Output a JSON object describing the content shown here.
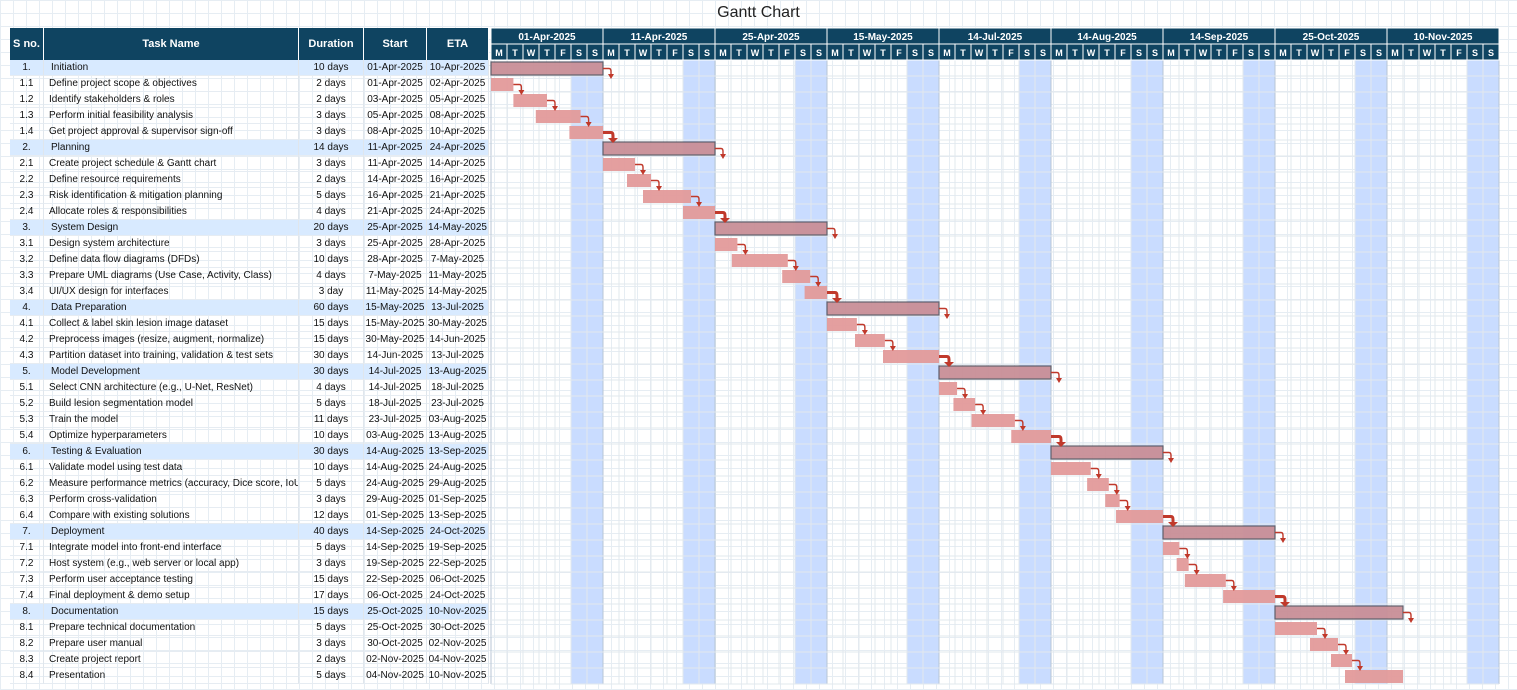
{
  "title": "Gantt Chart",
  "columns": [
    "S no.",
    "Task Name",
    "Duration",
    "Start",
    "ETA"
  ],
  "day_letters": [
    "M",
    "T",
    "W",
    "T",
    "F",
    "S",
    "S"
  ],
  "colors": {
    "header": "#0f4461",
    "phase_row": "#d8eaff",
    "weekend": "#c9dcff",
    "bar": "#e39a9a",
    "phase_bar": "#c98f97",
    "arrow": "#c0392b"
  },
  "chart_data": {
    "type": "table",
    "week_blocks": [
      "01-Apr-2025",
      "11-Apr-2025",
      "25-Apr-2025",
      "15-May-2025",
      "14-Jul-2025",
      "14-Aug-2025",
      "14-Sep-2025",
      "25-Oct-2025",
      "10-Nov-2025"
    ],
    "tasks": [
      {
        "id": "1.",
        "name": "Initiation",
        "duration": "10 days",
        "start": "01-Apr-2025",
        "eta": "10-Apr-2025",
        "phase": true
      },
      {
        "id": "1.1",
        "name": "Define project scope & objectives",
        "duration": "2 days",
        "start": "01-Apr-2025",
        "eta": "02-Apr-2025"
      },
      {
        "id": "1.2",
        "name": "Identify stakeholders & roles",
        "duration": "2 days",
        "start": "03-Apr-2025",
        "eta": "05-Apr-2025"
      },
      {
        "id": "1.3",
        "name": "Perform initial feasibility analysis",
        "duration": "3 days",
        "start": "05-Apr-2025",
        "eta": "08-Apr-2025"
      },
      {
        "id": "1.4",
        "name": "Get project approval & supervisor sign-off",
        "duration": "3 days",
        "start": "08-Apr-2025",
        "eta": "10-Apr-2025"
      },
      {
        "id": "2.",
        "name": "Planning",
        "duration": "14 days",
        "start": "11-Apr-2025",
        "eta": "24-Apr-2025",
        "phase": true
      },
      {
        "id": "2.1",
        "name": "Create project schedule & Gantt chart",
        "duration": "3 days",
        "start": "11-Apr-2025",
        "eta": "14-Apr-2025"
      },
      {
        "id": "2.2",
        "name": "Define resource requirements",
        "duration": "2 days",
        "start": "14-Apr-2025",
        "eta": "16-Apr-2025"
      },
      {
        "id": "2.3",
        "name": "Risk identification & mitigation planning",
        "duration": "5 days",
        "start": "16-Apr-2025",
        "eta": "21-Apr-2025"
      },
      {
        "id": "2.4",
        "name": "Allocate roles & responsibilities",
        "duration": "4 days",
        "start": "21-Apr-2025",
        "eta": "24-Apr-2025"
      },
      {
        "id": "3.",
        "name": "System Design",
        "duration": "20 days",
        "start": "25-Apr-2025",
        "eta": "14-May-2025",
        "phase": true
      },
      {
        "id": "3.1",
        "name": "Design system architecture",
        "duration": "3 days",
        "start": "25-Apr-2025",
        "eta": "28-Apr-2025"
      },
      {
        "id": "3.2",
        "name": "Define data flow diagrams (DFDs)",
        "duration": "10 days",
        "start": "28-Apr-2025",
        "eta": "7-May-2025"
      },
      {
        "id": "3.3",
        "name": "Prepare UML diagrams (Use Case, Activity, Class)",
        "duration": "4 days",
        "start": "7-May-2025",
        "eta": "11-May-2025"
      },
      {
        "id": "3.4",
        "name": "UI/UX design for interfaces",
        "duration": "3 day",
        "start": "11-May-2025",
        "eta": "14-May-2025"
      },
      {
        "id": "4.",
        "name": "Data Preparation",
        "duration": "60 days",
        "start": "15-May-2025",
        "eta": "13-Jul-2025",
        "phase": true
      },
      {
        "id": "4.1",
        "name": "Collect & label skin lesion image dataset",
        "duration": "15 days",
        "start": "15-May-2025",
        "eta": "30-May-2025"
      },
      {
        "id": "4.2",
        "name": "Preprocess images (resize, augment, normalize)",
        "duration": "15 days",
        "start": "30-May-2025",
        "eta": "14-Jun-2025"
      },
      {
        "id": "4.3",
        "name": "Partition dataset into training, validation & test sets",
        "duration": "30 days",
        "start": "14-Jun-2025",
        "eta": "13-Jul-2025"
      },
      {
        "id": "5.",
        "name": "Model Development",
        "duration": "30 days",
        "start": "14-Jul-2025",
        "eta": "13-Aug-2025",
        "phase": true
      },
      {
        "id": "5.1",
        "name": "Select CNN architecture (e.g., U-Net, ResNet)",
        "duration": "4 days",
        "start": "14-Jul-2025",
        "eta": "18-Jul-2025"
      },
      {
        "id": "5.2",
        "name": "Build lesion segmentation model",
        "duration": "5 days",
        "start": "18-Jul-2025",
        "eta": "23-Jul-2025"
      },
      {
        "id": "5.3",
        "name": "Train the model",
        "duration": "11 days",
        "start": "23-Jul-2025",
        "eta": "03-Aug-2025"
      },
      {
        "id": "5.4",
        "name": "Optimize hyperparameters",
        "duration": "10 days",
        "start": "03-Aug-2025",
        "eta": "13-Aug-2025"
      },
      {
        "id": "6.",
        "name": "Testing & Evaluation",
        "duration": "30 days",
        "start": "14-Aug-2025",
        "eta": "13-Sep-2025",
        "phase": true
      },
      {
        "id": "6.1",
        "name": "Validate model using test data",
        "duration": "10 days",
        "start": "14-Aug-2025",
        "eta": "24-Aug-2025"
      },
      {
        "id": "6.2",
        "name": "Measure performance metrics (accuracy, Dice score, IoU)",
        "duration": "5 days",
        "start": "24-Aug-2025",
        "eta": "29-Aug-2025"
      },
      {
        "id": "6.3",
        "name": "Perform cross-validation",
        "duration": "3 days",
        "start": "29-Aug-2025",
        "eta": "01-Sep-2025"
      },
      {
        "id": "6.4",
        "name": "Compare with existing solutions",
        "duration": "12 days",
        "start": "01-Sep-2025",
        "eta": "13-Sep-2025"
      },
      {
        "id": "7.",
        "name": "Deployment",
        "duration": "40 days",
        "start": "14-Sep-2025",
        "eta": "24-Oct-2025",
        "phase": true
      },
      {
        "id": "7.1",
        "name": "Integrate model into front-end interface",
        "duration": "5 days",
        "start": "14-Sep-2025",
        "eta": "19-Sep-2025"
      },
      {
        "id": "7.2",
        "name": "Host system (e.g., web server or local app)",
        "duration": "3 days",
        "start": "19-Sep-2025",
        "eta": "22-Sep-2025"
      },
      {
        "id": "7.3",
        "name": "Perform user acceptance testing",
        "duration": "15 days",
        "start": "22-Sep-2025",
        "eta": "06-Oct-2025"
      },
      {
        "id": "7.4",
        "name": "Final deployment & demo setup",
        "duration": "17 days",
        "start": "06-Oct-2025",
        "eta": "24-Oct-2025"
      },
      {
        "id": "8.",
        "name": "Documentation",
        "duration": "15 days",
        "start": "25-Oct-2025",
        "eta": "10-Nov-2025",
        "phase": true
      },
      {
        "id": "8.1",
        "name": "Prepare technical documentation",
        "duration": "5 days",
        "start": "25-Oct-2025",
        "eta": "30-Oct-2025"
      },
      {
        "id": "8.2",
        "name": "Prepare user manual",
        "duration": "3 days",
        "start": "30-Oct-2025",
        "eta": "02-Nov-2025"
      },
      {
        "id": "8.3",
        "name": "Create project report",
        "duration": "2 days",
        "start": "02-Nov-2025",
        "eta": "04-Nov-2025"
      },
      {
        "id": "8.4",
        "name": "Presentation",
        "duration": "5 days",
        "start": "04-Nov-2025",
        "eta": "10-Nov-2025"
      }
    ]
  }
}
